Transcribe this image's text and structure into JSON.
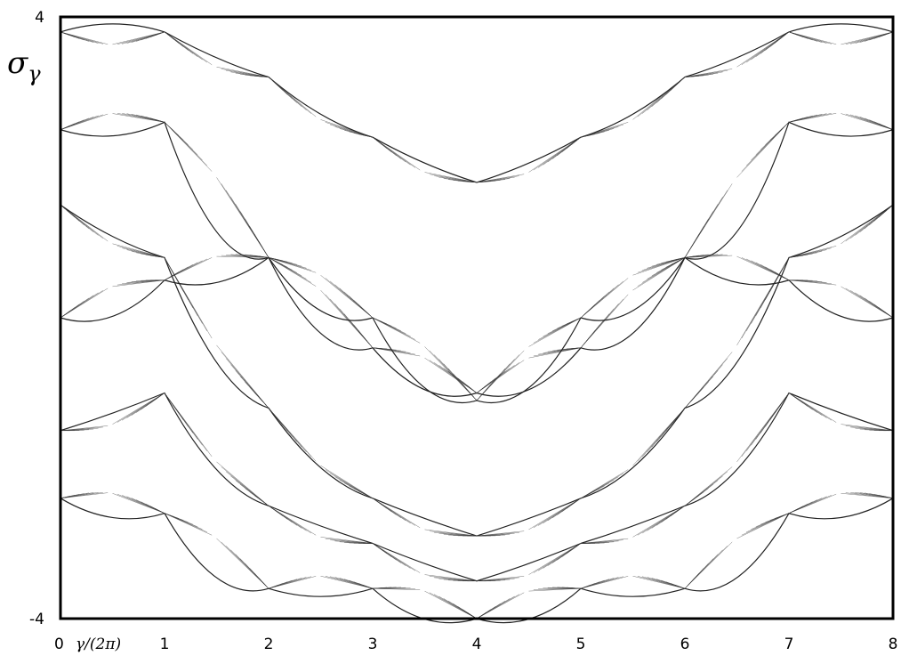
{
  "chart_data": {
    "type": "line",
    "title": "",
    "xlabel": "γ/(2π)",
    "ylabel_main": "σ",
    "ylabel_sub": "γ",
    "xlim": [
      0,
      8
    ],
    "ylim": [
      -4,
      4
    ],
    "x_ticks": [
      "0",
      "1",
      "2",
      "3",
      "4",
      "5",
      "6",
      "7",
      "8"
    ],
    "y_ticks": [
      "4",
      "-4"
    ],
    "grid": false,
    "legend": "none",
    "series": [
      {
        "x": [
          0,
          1,
          2,
          3,
          4,
          5,
          6,
          7,
          8
        ],
        "y": [
          3.8,
          3.8,
          3.2,
          2.4,
          1.8,
          2.4,
          3.2,
          3.8,
          3.8
        ]
      },
      {
        "x": [
          0,
          1,
          2,
          3,
          4,
          5,
          6,
          7,
          8
        ],
        "y": [
          2.5,
          2.6,
          0.8,
          -0.4,
          -1.0,
          -0.4,
          0.8,
          2.6,
          2.5
        ]
      },
      {
        "x": [
          0,
          1,
          2,
          3,
          4,
          5,
          6,
          7,
          8
        ],
        "y": [
          1.5,
          0.8,
          -1.2,
          -2.4,
          -2.9,
          -2.4,
          -1.2,
          0.8,
          1.5
        ]
      },
      {
        "x": [
          0,
          1,
          2,
          3,
          4,
          5,
          6,
          7,
          8
        ],
        "y": [
          0.0,
          0.5,
          0.8,
          0.0,
          -1.1,
          0.0,
          0.8,
          0.5,
          0.0
        ]
      },
      {
        "x": [
          0,
          1,
          2,
          3,
          4,
          5,
          6,
          7,
          8
        ],
        "y": [
          -1.5,
          -1.0,
          -2.5,
          -3.0,
          -3.5,
          -3.0,
          -2.5,
          -1.0,
          -1.5
        ]
      },
      {
        "x": [
          0,
          1,
          2,
          3,
          4,
          5,
          6,
          7,
          8
        ],
        "y": [
          -2.4,
          -2.6,
          -3.6,
          -3.6,
          -4.0,
          -3.6,
          -3.6,
          -2.6,
          -2.4
        ]
      }
    ]
  }
}
